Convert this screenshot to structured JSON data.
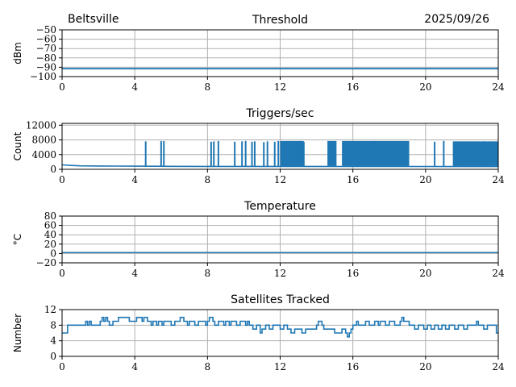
{
  "header": {
    "station": "Beltsville",
    "date": "2025/09/26"
  },
  "colors": {
    "line": "#1f77b4",
    "grid": "#b0b0b0"
  },
  "chart_data": [
    {
      "type": "line",
      "title": "Threshold",
      "ylabel": "dBm",
      "xlim": [
        0,
        24
      ],
      "xticks": [
        0,
        4,
        8,
        12,
        16,
        20,
        24
      ],
      "ylim": [
        -100,
        -50
      ],
      "yticks": [
        -100,
        -90,
        -80,
        -70,
        -60,
        -50
      ],
      "series": [
        {
          "name": "threshold",
          "segments": [
            {
              "x0": 0,
              "x1": 24,
              "lo": -92.5,
              "hi": -90.5
            }
          ]
        }
      ]
    },
    {
      "type": "line",
      "title": "Triggers/sec",
      "ylabel": "Count",
      "xlim": [
        0,
        24
      ],
      "xticks": [
        0,
        4,
        8,
        12,
        16,
        20,
        24
      ],
      "ylim": [
        0,
        12500
      ],
      "yticks": [
        0,
        4000,
        8000,
        12000
      ],
      "baseline": [
        [
          0,
          1200
        ],
        [
          0.5,
          1050
        ],
        [
          1,
          950
        ],
        [
          2,
          900
        ],
        [
          3,
          870
        ],
        [
          4,
          850
        ],
        [
          6,
          820
        ],
        [
          8,
          800
        ],
        [
          10,
          790
        ],
        [
          12,
          800
        ],
        [
          14,
          780
        ],
        [
          16,
          760
        ],
        [
          18,
          770
        ],
        [
          20,
          760
        ],
        [
          22,
          750
        ],
        [
          24,
          740
        ]
      ],
      "spikes": [
        [
          4.6,
          7600
        ],
        [
          5.45,
          7700
        ],
        [
          5.6,
          7700
        ],
        [
          8.2,
          7500
        ],
        [
          8.35,
          7600
        ],
        [
          8.6,
          7700
        ],
        [
          9.5,
          7500
        ],
        [
          9.9,
          7600
        ],
        [
          10.1,
          7700
        ],
        [
          10.45,
          7500
        ],
        [
          10.6,
          7600
        ],
        [
          11.1,
          7400
        ],
        [
          11.3,
          7600
        ],
        [
          11.7,
          7500
        ],
        [
          11.9,
          7700
        ],
        [
          12.3,
          7600
        ],
        [
          12.6,
          7400
        ],
        [
          12.9,
          7600
        ],
        [
          13.1,
          7700
        ],
        [
          13.3,
          7500
        ],
        [
          17.2,
          7700
        ],
        [
          20.5,
          7500
        ],
        [
          21.0,
          7700
        ],
        [
          23.2,
          7600
        ]
      ],
      "bursts": [
        {
          "x0": 12.0,
          "x1": 13.3,
          "top": 7700
        },
        {
          "x0": 14.6,
          "x1": 15.1,
          "top": 7700
        },
        {
          "x0": 15.4,
          "x1": 19.1,
          "top": 7700
        },
        {
          "x0": 21.5,
          "x1": 24.0,
          "top": 7600
        }
      ]
    },
    {
      "type": "line",
      "title": "Temperature",
      "ylabel": "°C",
      "xlim": [
        0,
        24
      ],
      "xticks": [
        0,
        4,
        8,
        12,
        16,
        20,
        24
      ],
      "ylim": [
        -20,
        80
      ],
      "yticks": [
        -20,
        0,
        20,
        40,
        60,
        80
      ],
      "series": [
        {
          "name": "temperature",
          "segments": [
            {
              "x0": 0,
              "x1": 24,
              "lo": 1,
              "hi": 3
            }
          ]
        }
      ]
    },
    {
      "type": "line",
      "title": "Satellites Tracked",
      "ylabel": "Number",
      "xlim": [
        0,
        24
      ],
      "xticks": [
        0,
        4,
        8,
        12,
        16,
        20,
        24
      ],
      "ylim": [
        0,
        12
      ],
      "yticks": [
        0,
        4,
        8,
        12
      ],
      "step": [
        [
          0,
          6
        ],
        [
          0.3,
          8
        ],
        [
          1.2,
          8
        ],
        [
          1.3,
          9
        ],
        [
          1.4,
          8
        ],
        [
          1.5,
          9
        ],
        [
          1.6,
          8
        ],
        [
          2.0,
          8
        ],
        [
          2.1,
          9
        ],
        [
          2.2,
          10
        ],
        [
          2.3,
          9
        ],
        [
          2.4,
          10
        ],
        [
          2.5,
          9
        ],
        [
          2.6,
          8
        ],
        [
          2.8,
          9
        ],
        [
          3.0,
          9
        ],
        [
          3.1,
          10
        ],
        [
          3.6,
          10
        ],
        [
          3.7,
          9
        ],
        [
          4.1,
          10
        ],
        [
          4.4,
          9
        ],
        [
          4.5,
          10
        ],
        [
          4.7,
          9
        ],
        [
          4.9,
          8
        ],
        [
          5.0,
          9
        ],
        [
          5.2,
          8
        ],
        [
          5.3,
          9
        ],
        [
          5.5,
          8
        ],
        [
          5.6,
          9
        ],
        [
          5.9,
          9
        ],
        [
          6.0,
          8
        ],
        [
          6.2,
          9
        ],
        [
          6.4,
          9
        ],
        [
          6.5,
          10
        ],
        [
          6.7,
          9
        ],
        [
          6.9,
          8
        ],
        [
          7.0,
          9
        ],
        [
          7.2,
          9
        ],
        [
          7.3,
          8
        ],
        [
          7.5,
          9
        ],
        [
          7.8,
          9
        ],
        [
          7.9,
          8
        ],
        [
          8.0,
          9
        ],
        [
          8.1,
          10
        ],
        [
          8.3,
          9
        ],
        [
          8.4,
          8
        ],
        [
          8.6,
          9
        ],
        [
          8.8,
          9
        ],
        [
          8.9,
          8
        ],
        [
          9.0,
          9
        ],
        [
          9.2,
          8
        ],
        [
          9.3,
          9
        ],
        [
          9.5,
          9
        ],
        [
          9.6,
          8
        ],
        [
          9.8,
          9
        ],
        [
          10.1,
          8
        ],
        [
          10.2,
          9
        ],
        [
          10.3,
          8
        ],
        [
          10.5,
          7
        ],
        [
          10.7,
          8
        ],
        [
          10.9,
          6
        ],
        [
          11.0,
          7
        ],
        [
          11.2,
          8
        ],
        [
          11.4,
          7
        ],
        [
          11.6,
          8
        ],
        [
          11.9,
          8
        ],
        [
          12.0,
          7
        ],
        [
          12.2,
          8
        ],
        [
          12.4,
          7
        ],
        [
          12.6,
          6
        ],
        [
          12.8,
          7
        ],
        [
          13.0,
          7
        ],
        [
          13.2,
          6
        ],
        [
          13.4,
          7
        ],
        [
          13.9,
          7
        ],
        [
          14.0,
          8
        ],
        [
          14.1,
          9
        ],
        [
          14.3,
          8
        ],
        [
          14.4,
          7
        ],
        [
          14.6,
          7
        ],
        [
          14.9,
          7
        ],
        [
          15.0,
          6
        ],
        [
          15.3,
          6
        ],
        [
          15.4,
          7
        ],
        [
          15.6,
          6
        ],
        [
          15.7,
          5
        ],
        [
          15.8,
          6
        ],
        [
          15.9,
          7
        ],
        [
          16.0,
          8
        ],
        [
          16.2,
          9
        ],
        [
          16.3,
          8
        ],
        [
          16.6,
          8
        ],
        [
          16.7,
          9
        ],
        [
          16.9,
          8
        ],
        [
          17.1,
          8
        ],
        [
          17.2,
          9
        ],
        [
          17.4,
          8
        ],
        [
          17.5,
          9
        ],
        [
          17.8,
          8
        ],
        [
          18.0,
          9
        ],
        [
          18.3,
          8
        ],
        [
          18.6,
          9
        ],
        [
          18.7,
          10
        ],
        [
          18.8,
          9
        ],
        [
          19.1,
          8
        ],
        [
          19.3,
          8
        ],
        [
          19.4,
          7
        ],
        [
          19.6,
          8
        ],
        [
          19.8,
          8
        ],
        [
          19.9,
          7
        ],
        [
          20.1,
          8
        ],
        [
          20.3,
          7
        ],
        [
          20.5,
          8
        ],
        [
          20.7,
          7
        ],
        [
          20.9,
          8
        ],
        [
          21.1,
          7
        ],
        [
          21.3,
          8
        ],
        [
          21.6,
          7
        ],
        [
          21.8,
          8
        ],
        [
          22.0,
          8
        ],
        [
          22.1,
          7
        ],
        [
          22.3,
          8
        ],
        [
          22.5,
          8
        ],
        [
          22.7,
          8
        ],
        [
          22.8,
          9
        ],
        [
          22.9,
          8
        ],
        [
          23.1,
          8
        ],
        [
          23.2,
          7
        ],
        [
          23.4,
          8
        ],
        [
          23.8,
          8
        ],
        [
          23.9,
          6
        ],
        [
          24.0,
          6
        ]
      ]
    }
  ]
}
